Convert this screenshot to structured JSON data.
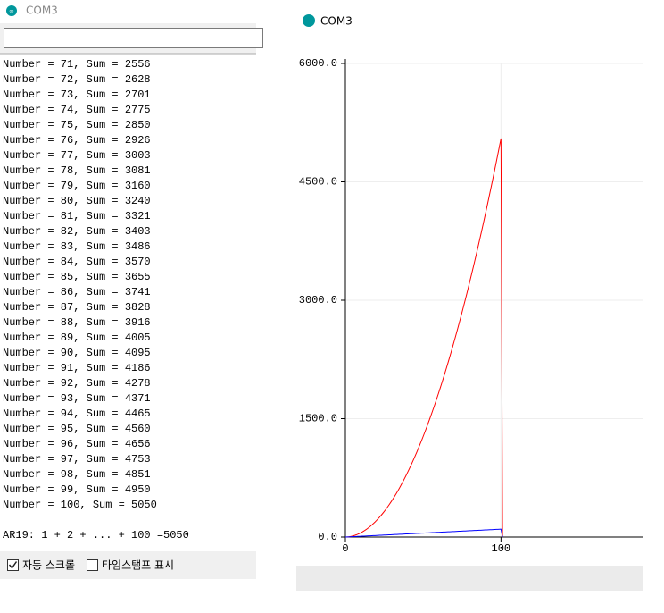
{
  "monitor": {
    "title": "COM3",
    "lines": [
      "Number = 71, Sum = 2556",
      "Number = 72, Sum = 2628",
      "Number = 73, Sum = 2701",
      "Number = 74, Sum = 2775",
      "Number = 75, Sum = 2850",
      "Number = 76, Sum = 2926",
      "Number = 77, Sum = 3003",
      "Number = 78, Sum = 3081",
      "Number = 79, Sum = 3160",
      "Number = 80, Sum = 3240",
      "Number = 81, Sum = 3321",
      "Number = 82, Sum = 3403",
      "Number = 83, Sum = 3486",
      "Number = 84, Sum = 3570",
      "Number = 85, Sum = 3655",
      "Number = 86, Sum = 3741",
      "Number = 87, Sum = 3828",
      "Number = 88, Sum = 3916",
      "Number = 89, Sum = 4005",
      "Number = 90, Sum = 4095",
      "Number = 91, Sum = 4186",
      "Number = 92, Sum = 4278",
      "Number = 93, Sum = 4371",
      "Number = 94, Sum = 4465",
      "Number = 95, Sum = 4560",
      "Number = 96, Sum = 4656",
      "Number = 97, Sum = 4753",
      "Number = 98, Sum = 4851",
      "Number = 99, Sum = 4950",
      "Number = 100, Sum = 5050"
    ],
    "result": "AR19: 1 + 2 + ... + 100 =5050",
    "autoscroll": "자동 스크롤",
    "timestamp": "타임스탬프 표시"
  },
  "plotter_title": "COM3",
  "chart_data": {
    "type": "line",
    "x": [
      0,
      1,
      2,
      3,
      4,
      5,
      6,
      7,
      8,
      9,
      10,
      11,
      12,
      13,
      14,
      15,
      16,
      17,
      18,
      19,
      20,
      21,
      22,
      23,
      24,
      25,
      26,
      27,
      28,
      29,
      30,
      31,
      32,
      33,
      34,
      35,
      36,
      37,
      38,
      39,
      40,
      41,
      42,
      43,
      44,
      45,
      46,
      47,
      48,
      49,
      50,
      51,
      52,
      53,
      54,
      55,
      56,
      57,
      58,
      59,
      60,
      61,
      62,
      63,
      64,
      65,
      66,
      67,
      68,
      69,
      70,
      71,
      72,
      73,
      74,
      75,
      76,
      77,
      78,
      79,
      80,
      81,
      82,
      83,
      84,
      85,
      86,
      87,
      88,
      89,
      90,
      91,
      92,
      93,
      94,
      95,
      96,
      97,
      98,
      99,
      100,
      101
    ],
    "series": [
      {
        "color": "#ff0000",
        "values": [
          0,
          1,
          3,
          6,
          10,
          15,
          21,
          28,
          36,
          45,
          55,
          66,
          78,
          91,
          105,
          120,
          136,
          153,
          171,
          190,
          210,
          231,
          253,
          276,
          300,
          325,
          351,
          378,
          406,
          435,
          465,
          496,
          528,
          561,
          595,
          630,
          666,
          703,
          741,
          780,
          820,
          861,
          903,
          946,
          990,
          1035,
          1081,
          1128,
          1176,
          1225,
          1275,
          1326,
          1378,
          1431,
          1485,
          1540,
          1596,
          1653,
          1711,
          1770,
          1830,
          1891,
          1953,
          2016,
          2080,
          2145,
          2211,
          2278,
          2346,
          2415,
          2485,
          2556,
          2628,
          2701,
          2775,
          2850,
          2926,
          3003,
          3081,
          3160,
          3240,
          3321,
          3403,
          3486,
          3570,
          3655,
          3741,
          3828,
          3916,
          4005,
          4095,
          4186,
          4278,
          4371,
          4465,
          4560,
          4656,
          4753,
          4851,
          4950,
          5050,
          0
        ]
      },
      {
        "color": "#0000ff",
        "values": [
          0,
          1,
          2,
          3,
          4,
          5,
          6,
          7,
          8,
          9,
          10,
          11,
          12,
          13,
          14,
          15,
          16,
          17,
          18,
          19,
          20,
          21,
          22,
          23,
          24,
          25,
          26,
          27,
          28,
          29,
          30,
          31,
          32,
          33,
          34,
          35,
          36,
          37,
          38,
          39,
          40,
          41,
          42,
          43,
          44,
          45,
          46,
          47,
          48,
          49,
          50,
          51,
          52,
          53,
          54,
          55,
          56,
          57,
          58,
          59,
          60,
          61,
          62,
          63,
          64,
          65,
          66,
          67,
          68,
          69,
          70,
          71,
          72,
          73,
          74,
          75,
          76,
          77,
          78,
          79,
          80,
          81,
          82,
          83,
          84,
          85,
          86,
          87,
          88,
          89,
          90,
          91,
          92,
          93,
          94,
          95,
          96,
          97,
          98,
          99,
          100,
          0
        ]
      }
    ],
    "xlim": [
      0,
      191
    ],
    "xticks": [
      0,
      100
    ],
    "ylim": [
      0,
      6000
    ],
    "yticks": [
      {
        "value": 0,
        "label": "0.0"
      },
      {
        "value": 1500,
        "label": "1500.0"
      },
      {
        "value": 3000,
        "label": "3000.0"
      },
      {
        "value": 4500,
        "label": "4500.0"
      },
      {
        "value": 6000,
        "label": "6000.0"
      }
    ],
    "grid": true
  }
}
